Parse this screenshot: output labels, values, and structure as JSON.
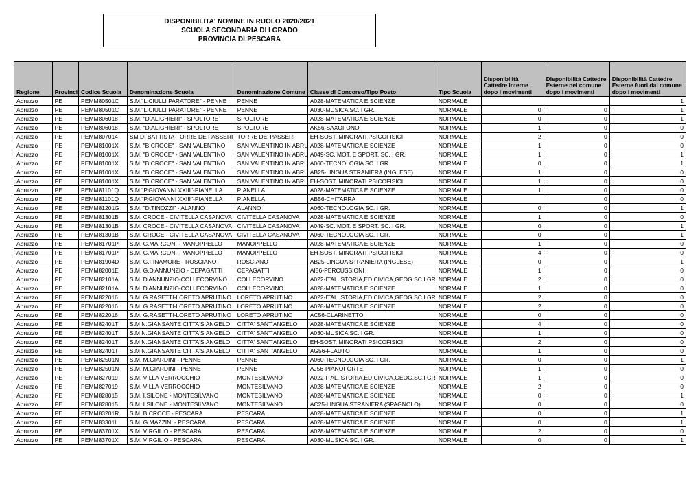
{
  "title": {
    "line1": "DISPONIBILITA' NOMINE IN RUOLO 2020/2021",
    "line2": "SCUOLA SECONDARIA DI I GRADO",
    "line3": "PROVINCIA DI:PESCARA"
  },
  "headers": {
    "regione": "Regione",
    "provincia": "Provincia",
    "codice": "Codice Scuola",
    "denom": "Denominazione Scuola",
    "comune": "Denominazione Comune",
    "classe": "Classe di Concorso/Tipo Posto",
    "tipo": "Tipo Scuola",
    "disp1": "Disponibilità Cattedre Interne dopo i movimenti",
    "disp2": "Disponibilità Cattedre Esterne nel comune dopo i movimenti",
    "disp3": "Disponibilità Cattedre Esterne fuori dal comune dopo i movimenti"
  },
  "rows": [
    [
      "Abruzzo",
      "PE",
      "PEMM80501C",
      "S.M.\"L.CIULLI PARATORE\" - PENNE",
      "PENNE",
      "A028-MATEMATICA E SCIENZE",
      "NORMALE",
      "",
      "",
      "1"
    ],
    [
      "Abruzzo",
      "PE",
      "PEMM80501C",
      "S.M.\"L.CIULLI PARATORE\" - PENNE",
      "PENNE",
      "A030-MUSICA SC. I GR.",
      "NORMALE",
      "0",
      "0",
      "1"
    ],
    [
      "Abruzzo",
      "PE",
      "PEMM806018",
      "S.M. \"D.ALIGHIERI\" - SPOLTORE",
      "SPOLTORE",
      "A028-MATEMATICA E SCIENZE",
      "NORMALE",
      "0",
      "0",
      "1"
    ],
    [
      "Abruzzo",
      "PE",
      "PEMM806018",
      "S.M. \"D.ALIGHIERI\" - SPOLTORE",
      "SPOLTORE",
      "AK56-SAXOFONO",
      "NORMALE",
      "1",
      "0",
      "0"
    ],
    [
      "Abruzzo",
      "PE",
      "PEMM807014",
      "SM DI BATTISTA-TORRE DE PASSERI",
      "TORRE DE' PASSERI",
      "EH-SOST. MINORATI PSICOFISICI",
      "NORMALE",
      "2",
      "0",
      "0"
    ],
    [
      "Abruzzo",
      "PE",
      "PEMM81001X",
      "S.M. \"B.CROCE\" - SAN VALENTINO",
      "SAN VALENTINO IN ABRUZZO",
      "A028-MATEMATICA E SCIENZE",
      "NORMALE",
      "1",
      "0",
      "0"
    ],
    [
      "Abruzzo",
      "PE",
      "PEMM81001X",
      "S.M. \"B.CROCE\" - SAN VALENTINO",
      "SAN VALENTINO IN ABRUZZO",
      "A049-SC. MOT. E SPORT. SC. I GR.",
      "NORMALE",
      "1",
      "0",
      "1"
    ],
    [
      "Abruzzo",
      "PE",
      "PEMM81001X",
      "S.M. \"B.CROCE\" - SAN VALENTINO",
      "SAN VALENTINO IN ABRUZZO",
      "A060-TECNOLOGIA SC. I GR.",
      "NORMALE",
      "0",
      "0",
      "1"
    ],
    [
      "Abruzzo",
      "PE",
      "PEMM81001X",
      "S.M. \"B.CROCE\" - SAN VALENTINO",
      "SAN VALENTINO IN ABRUZZO",
      "AB25-LINGUA STRANIERA (INGLESE)",
      "NORMALE",
      "1",
      "0",
      "0"
    ],
    [
      "Abruzzo",
      "PE",
      "PEMM81001X",
      "S.M. \"B.CROCE\" - SAN VALENTINO",
      "SAN VALENTINO IN ABRUZZO",
      "EH-SOST. MINORATI PSICOFISICI",
      "NORMALE",
      "1",
      "0",
      "0"
    ],
    [
      "Abruzzo",
      "PE",
      "PEMM81101Q",
      "S.M.\"P.GIOVANNI XXIII\"-PIANELLA",
      "PIANELLA",
      "A028-MATEMATICA E SCIENZE",
      "NORMALE",
      "1",
      "0",
      "0"
    ],
    [
      "Abruzzo",
      "PE",
      "PEMM81101Q",
      "S.M.\"P.GIOVANNI XXIII\"-PIANELLA",
      "PIANELLA",
      "AB56-CHITARRA",
      "NORMALE",
      "",
      "0",
      "0"
    ],
    [
      "Abruzzo",
      "PE",
      "PEMM81201G",
      "S.M. \"D.TINOZZI\" - ALANNO",
      "ALANNO",
      "A060-TECNOLOGIA SC. I GR.",
      "NORMALE",
      "0",
      "0",
      "1"
    ],
    [
      "Abruzzo",
      "PE",
      "PEMM81301B",
      "S.M. CROCE - CIVITELLA CASANOVA",
      "CIVITELLA CASANOVA",
      "A028-MATEMATICA E SCIENZE",
      "NORMALE",
      "1",
      "0",
      "0"
    ],
    [
      "Abruzzo",
      "PE",
      "PEMM81301B",
      "S.M. CROCE - CIVITELLA CASANOVA",
      "CIVITELLA CASANOVA",
      "A049-SC. MOT. E SPORT. SC. I GR.",
      "NORMALE",
      "0",
      "0",
      "1"
    ],
    [
      "Abruzzo",
      "PE",
      "PEMM81301B",
      "S.M. CROCE - CIVITELLA CASANOVA",
      "CIVITELLA CASANOVA",
      "A060-TECNOLOGIA SC. I GR.",
      "NORMALE",
      "0",
      "0",
      "1"
    ],
    [
      "Abruzzo",
      "PE",
      "PEMM81701P",
      "S.M. G.MARCONI - MANOPPELLO",
      "MANOPPELLO",
      "A028-MATEMATICA E SCIENZE",
      "NORMALE",
      "1",
      "0",
      "0"
    ],
    [
      "Abruzzo",
      "PE",
      "PEMM81701P",
      "S.M. G.MARCONI - MANOPPELLO",
      "MANOPPELLO",
      "EH-SOST. MINORATI PSICOFISICI",
      "NORMALE",
      "4",
      "0",
      "0"
    ],
    [
      "Abruzzo",
      "PE",
      "PEMM81904D",
      "S.M. G.FINAMORE - ROSCIANO",
      "ROSCIANO",
      "AB25-LINGUA STRANIERA (INGLESE)",
      "NORMALE",
      "0",
      "0",
      "1"
    ],
    [
      "Abruzzo",
      "PE",
      "PEMM82001E",
      "S.M. G.D'ANNUNZIO - CEPAGATTI",
      "CEPAGATTI",
      "AI56-PERCUSSIONI",
      "NORMALE",
      "1",
      "0",
      "0"
    ],
    [
      "Abruzzo",
      "PE",
      "PEMM82101A",
      "S.M. D'ANNUNZIO-COLLECORVINO",
      "COLLECORVINO",
      "A022-ITAL.,STORIA,ED.CIVICA,GEOG.SC.I GR",
      "NORMALE",
      "2",
      "0",
      "0"
    ],
    [
      "Abruzzo",
      "PE",
      "PEMM82101A",
      "S.M. D'ANNUNZIO-COLLECORVINO",
      "COLLECORVINO",
      "A028-MATEMATICA E SCIENZE",
      "NORMALE",
      "1",
      "0",
      "0"
    ],
    [
      "Abruzzo",
      "PE",
      "PEMM822016",
      "S.M. G.RASETTI-LORETO APRUTINO",
      "LORETO APRUTINO",
      "A022-ITAL.,STORIA,ED.CIVICA,GEOG.SC.I GR",
      "NORMALE",
      "2",
      "0",
      "0"
    ],
    [
      "Abruzzo",
      "PE",
      "PEMM822016",
      "S.M. G.RASETTI-LORETO APRUTINO",
      "LORETO APRUTINO",
      "A028-MATEMATICA E SCIENZE",
      "NORMALE",
      "2",
      "0",
      "0"
    ],
    [
      "Abruzzo",
      "PE",
      "PEMM822016",
      "S.M. G.RASETTI-LORETO APRUTINO",
      "LORETO APRUTINO",
      "AC56-CLARINETTO",
      "NORMALE",
      "0",
      "0",
      "0"
    ],
    [
      "Abruzzo",
      "PE",
      "PEMM82401T",
      "S.M N.GIANSANTE CITTA'S.ANGELO",
      "CITTA' SANT'ANGELO",
      "A028-MATEMATICA E SCIENZE",
      "NORMALE",
      "4",
      "0",
      "0"
    ],
    [
      "Abruzzo",
      "PE",
      "PEMM82401T",
      "S.M N.GIANSANTE CITTA'S.ANGELO",
      "CITTA' SANT'ANGELO",
      "A030-MUSICA SC. I GR.",
      "NORMALE",
      "1",
      "0",
      "0"
    ],
    [
      "Abruzzo",
      "PE",
      "PEMM82401T",
      "S.M N.GIANSANTE CITTA'S.ANGELO",
      "CITTA' SANT'ANGELO",
      "EH-SOST. MINORATI PSICOFISICI",
      "NORMALE",
      "2",
      "0",
      "0"
    ],
    [
      "Abruzzo",
      "PE",
      "PEMM82401T",
      "S.M N.GIANSANTE CITTA'S.ANGELO",
      "CITTA' SANT'ANGELO",
      "AG56-FLAUTO",
      "NORMALE",
      "1",
      "0",
      "0"
    ],
    [
      "Abruzzo",
      "PE",
      "PEMM82501N",
      "S.M. M.GIARDINI - PENNE",
      "PENNE",
      "A060-TECNOLOGIA SC. I GR.",
      "NORMALE",
      "0",
      "0",
      "1"
    ],
    [
      "Abruzzo",
      "PE",
      "PEMM82501N",
      "S.M. M.GIARDINI - PENNE",
      "PENNE",
      "AJ56-PIANOFORTE",
      "NORMALE",
      "1",
      "0",
      "0"
    ],
    [
      "Abruzzo",
      "PE",
      "PEMM827019",
      "S.M. VILLA  VERROCCHIO",
      "MONTESILVANO",
      "A022-ITAL.,STORIA,ED.CIVICA,GEOG.SC.I GR",
      "NORMALE",
      "1",
      "0",
      "0"
    ],
    [
      "Abruzzo",
      "PE",
      "PEMM827019",
      "S.M. VILLA  VERROCCHIO",
      "MONTESILVANO",
      "A028-MATEMATICA E SCIENZE",
      "NORMALE",
      "2",
      "0",
      "0"
    ],
    [
      "Abruzzo",
      "PE",
      "PEMM828015",
      "S.M. I.SILONE - MONTESILVANO",
      "MONTESILVANO",
      "A028-MATEMATICA E SCIENZE",
      "NORMALE",
      "0",
      "0",
      "1"
    ],
    [
      "Abruzzo",
      "PE",
      "PEMM828015",
      "S.M. I.SILONE - MONTESILVANO",
      "MONTESILVANO",
      "AC25-LINGUA STRANIERA (SPAGNOLO)",
      "NORMALE",
      "0",
      "0",
      "0"
    ],
    [
      "Abruzzo",
      "PE",
      "PEMM83201R",
      "S.M. B.CROCE - PESCARA",
      "PESCARA",
      "A028-MATEMATICA E SCIENZE",
      "NORMALE",
      "0",
      "0",
      "1"
    ],
    [
      "Abruzzo",
      "PE",
      "PEMM83301L",
      "S.M. G.MAZZINI - PESCARA",
      "PESCARA",
      "A028-MATEMATICA E SCIENZE",
      "NORMALE",
      "0",
      "0",
      "1"
    ],
    [
      "Abruzzo",
      "PE",
      "PEMM83701X",
      "S.M. VIRGILIO - PESCARA",
      "PESCARA",
      "A028-MATEMATICA E SCIENZE",
      "NORMALE",
      "2",
      "0",
      "0"
    ],
    [
      "Abruzzo",
      "PE",
      "PEMM83701X",
      "S.M. VIRGILIO - PESCARA",
      "PESCARA",
      "A030-MUSICA SC. I GR.",
      "NORMALE",
      "0",
      "0",
      "1"
    ]
  ]
}
